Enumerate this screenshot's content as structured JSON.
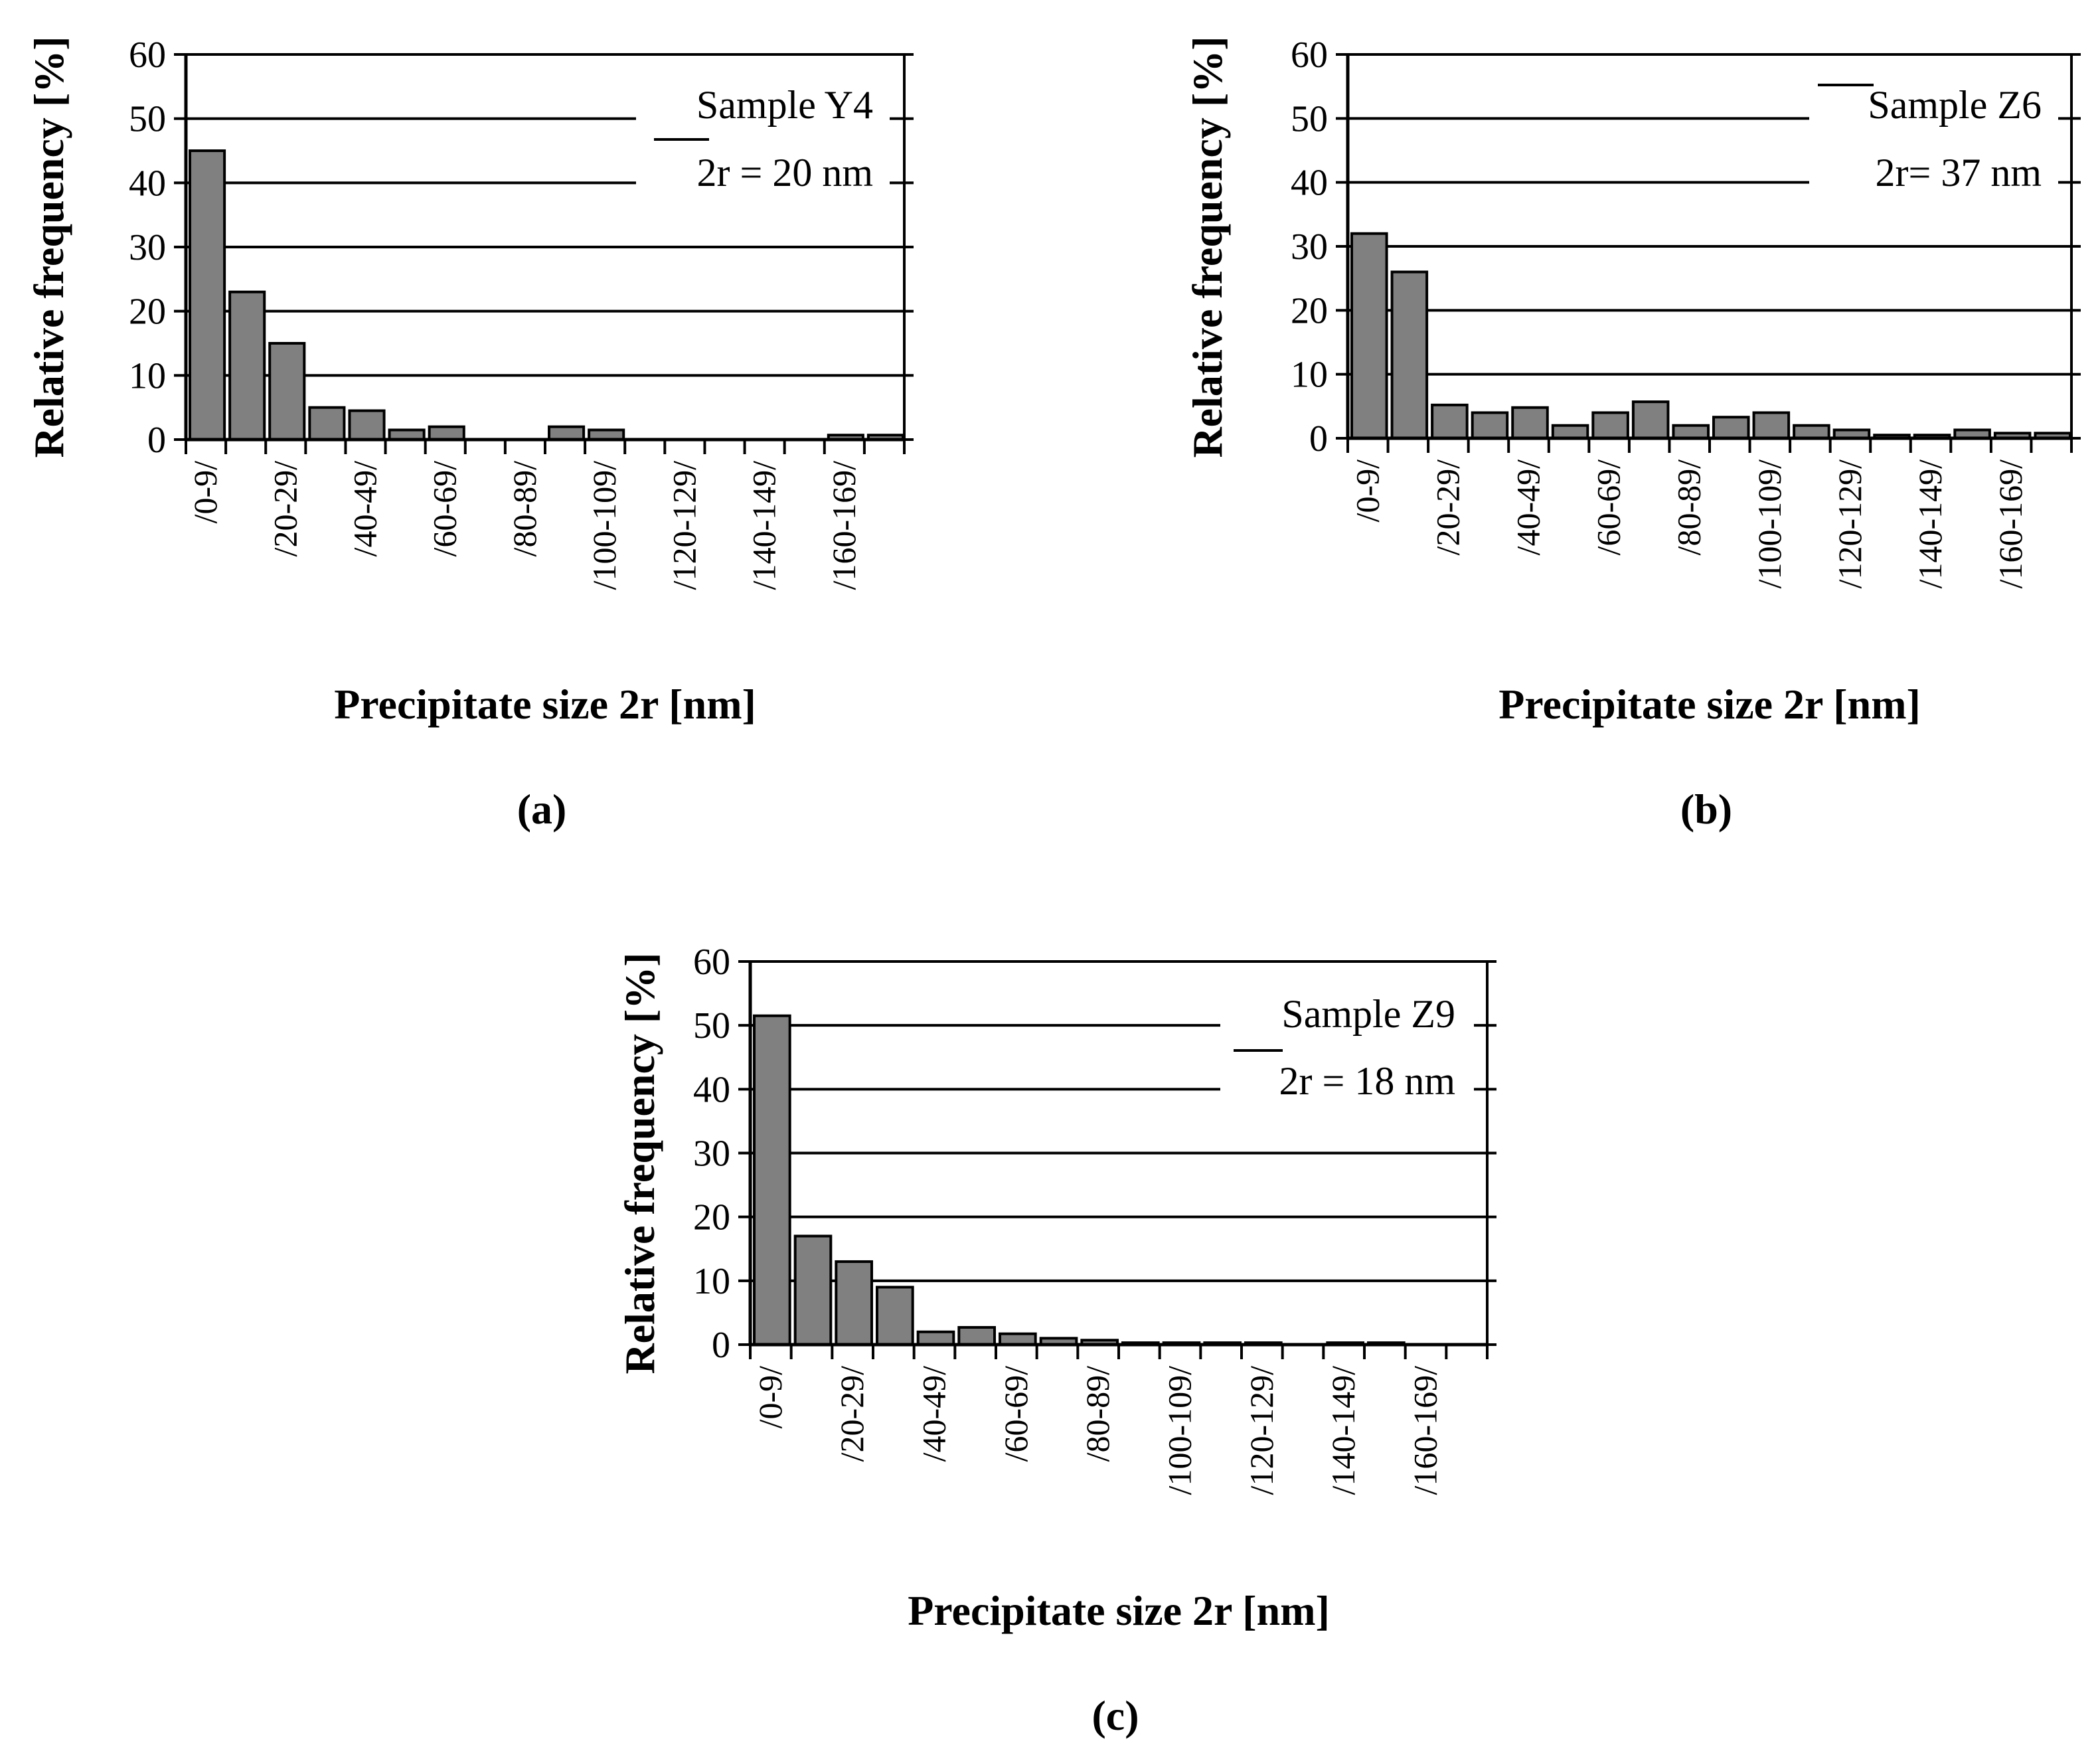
{
  "chart_data": [
    {
      "type": "bar",
      "panel_label": "(a)",
      "annotation_sample": "Sample Y4",
      "annotation_mean": "2r = 20 nm",
      "xlabel": "Precipitate size 2r [nm]",
      "ylabel": "Relative  frequency [%]",
      "ylim": [
        0,
        60
      ],
      "yticks": [
        "0",
        "10",
        "20",
        "30",
        "40",
        "50",
        "60"
      ],
      "grid": true,
      "xtick_labels": [
        "/0-9/",
        "/20-29/",
        "/40-49/",
        "/60-69/",
        "/80-89/",
        "/100-109/",
        "/120-129/",
        "/140-149/",
        "/160-169/"
      ],
      "bin_count": 18,
      "values": [
        45,
        23,
        15,
        5,
        4.5,
        1.5,
        2,
        0,
        0,
        2,
        1.5,
        0,
        0,
        0,
        0,
        0,
        0.7,
        0.7
      ]
    },
    {
      "type": "bar",
      "panel_label": "(b)",
      "annotation_sample": "Sample Z6",
      "annotation_mean": "2r= 37 nm",
      "xlabel": "Precipitate size 2r [nm]",
      "ylabel": "Relative  frequency [%]",
      "ylim": [
        0,
        60
      ],
      "yticks": [
        "0",
        "10",
        "20",
        "30",
        "40",
        "50",
        "60"
      ],
      "grid": true,
      "xtick_labels": [
        "/0-9/",
        "/20-29/",
        "/40-49/",
        "/60-69/",
        "/80-89/",
        "/100-109/",
        "/120-129/",
        "/140-149/",
        "/160-169/"
      ],
      "bin_count": 18,
      "values": [
        32,
        26,
        5.2,
        4,
        4.8,
        2,
        4,
        5.7,
        2,
        3.3,
        4,
        2,
        1.3,
        0.5,
        0.5,
        1.3,
        0.8,
        0.8
      ]
    },
    {
      "type": "bar",
      "panel_label": "(c)",
      "annotation_sample": "Sample Z9",
      "annotation_mean": "2r = 18 nm",
      "xlabel": "Precipitate size 2r [nm]",
      "ylabel": "Relative  frequency [%]",
      "ylim": [
        0,
        60
      ],
      "yticks": [
        "0",
        "10",
        "20",
        "30",
        "40",
        "50",
        "60"
      ],
      "grid": true,
      "xtick_labels": [
        "/0-9/",
        "/20-29/",
        "/40-49/",
        "/60-69/",
        "/80-89/",
        "/100-109/",
        "/120-129/",
        "/140-149/",
        "/160-169/"
      ],
      "bin_count": 18,
      "values": [
        51.5,
        17,
        13,
        9,
        2,
        2.7,
        1.7,
        1,
        0.7,
        0.3,
        0.3,
        0.3,
        0.3,
        0,
        0.3,
        0.3,
        0,
        0
      ]
    }
  ]
}
